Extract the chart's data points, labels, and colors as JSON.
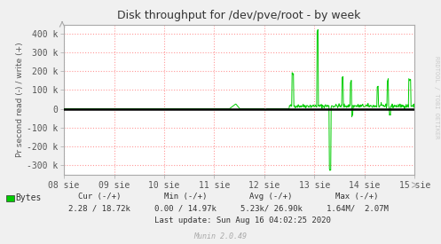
{
  "title": "Disk throughput for /dev/pve/root - by week",
  "ylabel": "Pr second read (-) / write (+)",
  "right_label": "RRDTOOL / TOBI OETIKER",
  "x_tick_labels": [
    "08 sie",
    "09 sie",
    "10 sie",
    "11 sie",
    "12 sie",
    "13 sie",
    "14 sie",
    "15 sie"
  ],
  "ylim": [
    -350000,
    450000
  ],
  "yticks": [
    -300000,
    -200000,
    -100000,
    0,
    100000,
    200000,
    300000,
    400000
  ],
  "ytick_labels": [
    "-300 k",
    "-200 k",
    "-100 k",
    "0",
    "100 k",
    "200 k",
    "300 k",
    "400 k"
  ],
  "bg_color": "#f0f0f0",
  "plot_bg_color": "#ffffff",
  "grid_color": "#ff9999",
  "line_color": "#00cc00",
  "zero_line_color": "#000000",
  "legend_label": "Bytes",
  "legend_color": "#00cc00",
  "cur_label": "Cur (-/+)",
  "min_label": "Min (-/+)",
  "avg_label": "Avg (-/+)",
  "max_label": "Max (-/+)",
  "cur_val": "2.28 / 18.72k",
  "min_val": "0.00 / 14.97k",
  "avg_val": "5.23k/ 26.90k",
  "max_val": "1.64M/  2.07M",
  "last_update": "Last update: Sun Aug 16 04:02:25 2020",
  "munin_version": "Munin 2.0.49",
  "border_color": "#aaaaaa",
  "title_color": "#333333",
  "stats_color": "#333333",
  "munin_color": "#aaaaaa"
}
